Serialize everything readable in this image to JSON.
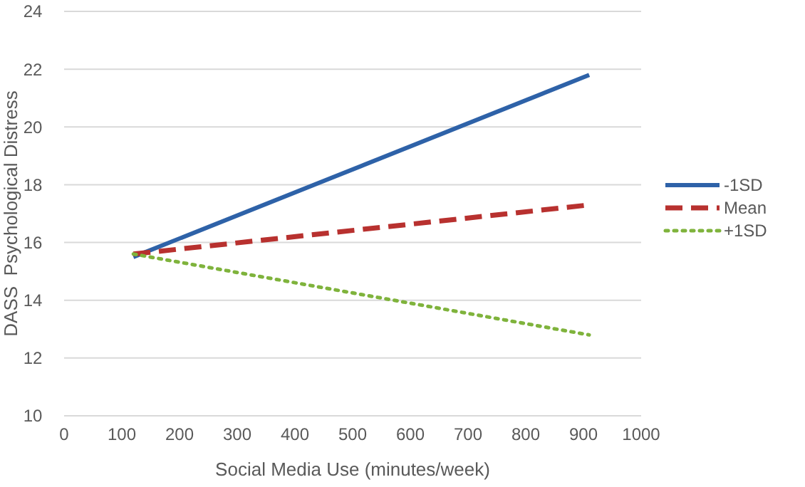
{
  "chart_data": {
    "type": "line",
    "xlabel": "Social Media Use (minutes/week)",
    "ylabel": "DASS  Psychological Distress",
    "xlim": [
      0,
      1000
    ],
    "xticks": [
      0,
      100,
      200,
      300,
      400,
      500,
      600,
      700,
      800,
      900,
      1000
    ],
    "ylim": [
      10,
      24
    ],
    "yticks": [
      10,
      12,
      14,
      16,
      18,
      20,
      22,
      24
    ],
    "x": [
      120,
      910
    ],
    "grid": "y",
    "legend": "right",
    "marker": "none",
    "series": [
      {
        "name": "-1SD",
        "color": "#2e62a8",
        "values": [
          15.5,
          21.8
        ],
        "line_style": "solid"
      },
      {
        "name": "Mean",
        "color": "#b8312f",
        "values": [
          15.6,
          17.3
        ],
        "line_style": "dashed"
      },
      {
        "name": "+1SD",
        "color": "#7fb33c",
        "values": [
          15.6,
          12.8
        ],
        "line_style": "dotted"
      }
    ]
  }
}
